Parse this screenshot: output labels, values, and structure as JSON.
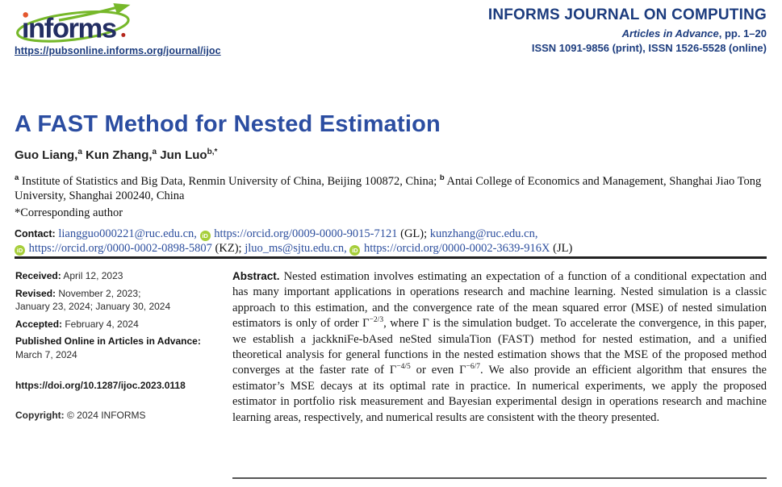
{
  "colors": {
    "header_navy": "#1c3c7e",
    "title_blue": "#2b4da1",
    "link_blue": "#2d4f9e",
    "orcid_green": "#a6ce39",
    "logo_navy": "#232e63",
    "logo_green": "#76b82a",
    "logo_orange": "#e4572e",
    "logo_red": "#b5271d"
  },
  "header": {
    "logo_text": "informs",
    "pub_url": "https://pubsonline.informs.org/journal/ijoc",
    "journal_name": "INFORMS JOURNAL ON COMPUTING",
    "advance_italic": "Articles in Advance",
    "advance_rest": ", pp. 1–20",
    "issn_line": "ISSN 1091-9856 (print), ISSN 1526-5528 (online)"
  },
  "article": {
    "title": "A FAST Method for Nested Estimation",
    "authors": [
      {
        "name": "Guo Liang,",
        "sup": "a"
      },
      {
        "name": " Kun Zhang,",
        "sup": "a"
      },
      {
        "name": " Jun Luo",
        "sup": "b,*"
      }
    ],
    "affiliation_a_sup": "a",
    "affiliation_a": " Institute of Statistics and Big Data, Renmin University of China, Beijing 100872, China; ",
    "affiliation_b_sup": "b",
    "affiliation_b": " Antai College of Economics and Management, Shanghai Jiao Tong University, Shanghai 200240, China",
    "corresponding": "*Corresponding author",
    "contact": {
      "label": "Contact:",
      "email1": "liangguo000221@ruc.edu.cn,",
      "orcid1": "https://orcid.org/0009-0000-9015-7121",
      "tag1": "(GL);",
      "email2": "kunzhang@ruc.edu.cn,",
      "orcid2": "https://orcid.org/0000-0002-0898-5807",
      "tag2": "(KZ);",
      "email3": "jluo_ms@sjtu.edu.cn,",
      "orcid3": "https://orcid.org/0000-0002-3639-916X",
      "tag3": "(JL)",
      "orcid_icon_label": "iD"
    }
  },
  "meta": {
    "items": [
      {
        "label": "Received:",
        "text": " April 12, 2023"
      },
      {
        "label": "Revised:",
        "text": " November 2, 2023;\nJanuary 23, 2024; January 30, 2024"
      },
      {
        "label": "Accepted:",
        "text": " February 4, 2024"
      },
      {
        "label": "Published Online in Articles in Advance:",
        "text": "\nMarch 7, 2024"
      }
    ],
    "doi": "https://doi.org/10.1287/ijoc.2023.0118",
    "copyright_label": "Copyright:",
    "copyright_text": " © 2024 INFORMS"
  },
  "abstract": {
    "label": "Abstract.",
    "segments": [
      {
        "t": "  Nested estimation involves estimating an expectation of a function of a conditional expectation and has many important applications in operations research and machine learning. Nested simulation is a classic approach to this estimation, and the convergence rate of the mean squared error (MSE) of nested simulation estimators is only of order Γ"
      },
      {
        "sup": "−2/3"
      },
      {
        "t": ", where Γ is the simulation budget. To accelerate the convergence, in this paper, we establish a jackkniFe-bAsed neSted simulaTion (FAST) method for nested estimation, and a unified theoretical analysis for general functions in the nested estimation shows that the MSE of the proposed method converges at the faster rate of Γ"
      },
      {
        "sup": "−4/5"
      },
      {
        "t": " or even Γ"
      },
      {
        "sup": "−6/7"
      },
      {
        "t": ". We also provide an efficient algorithm that ensures the estimator’s MSE decays at its optimal rate in practice. In numerical experiments, we apply the proposed estimator in portfolio risk measurement and Bayesian experimental design in operations research and machine learning areas, respectively, and numerical results are consistent with the theory presented."
      }
    ]
  }
}
